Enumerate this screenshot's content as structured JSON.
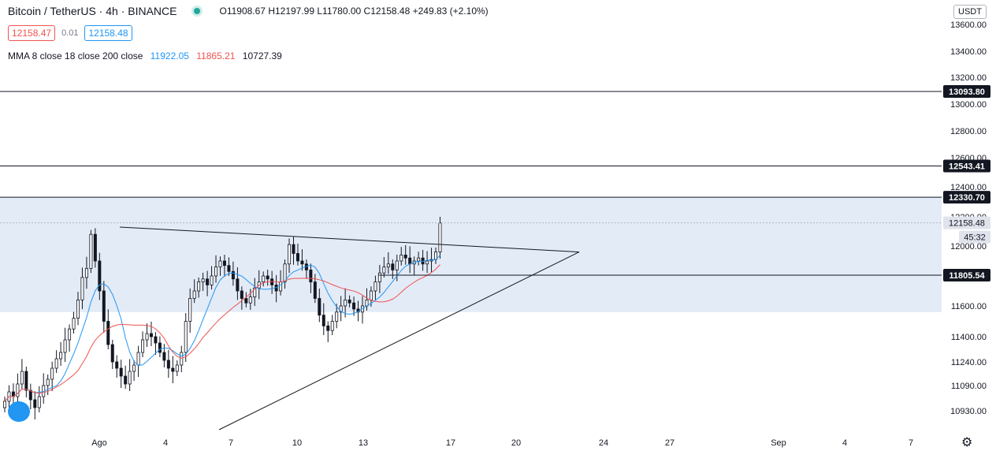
{
  "header": {
    "title": "Bitcoin / TetherUS · 4h · BINANCE",
    "ohlc": "O11908.67 H12197.99 L11780.00 C12158.48 +249.83 (+2.10%)"
  },
  "quote": {
    "sell": "12158.47",
    "spread": "0.01",
    "buy": "12158.48"
  },
  "indicator": {
    "label": "MMA 8 close 18 close 200 close",
    "v1": "11922.05",
    "v2": "11865.21",
    "v3": "10727.39"
  },
  "currency": "USDT",
  "colors": {
    "up": "#131722",
    "ma_fast": "#2196f3",
    "ma_slow": "#ef5350",
    "zone": "#e3ebf7",
    "label_bg": "#131722"
  },
  "icons": [
    "settings-gear-icon",
    "tradingview-logo-icon"
  ],
  "chart_data": {
    "type": "candlestick",
    "yticks": [
      13600,
      13400,
      13200,
      13000,
      12800,
      12600,
      12400,
      12200,
      12000,
      11800,
      11600,
      11400,
      11240,
      11090,
      10930
    ],
    "ytick_labels": [
      "13600.00",
      "13400.00",
      "13200.00",
      "13000.00",
      "12800.00",
      "12600.00",
      "12400.00",
      "12200.00",
      "12000.00",
      "",
      "11600.00",
      "11400.00",
      "11240.00",
      "11090.00",
      "10930.00"
    ],
    "xticks": [
      "Ago",
      "4",
      "7",
      "10",
      "13",
      "17",
      "20",
      "24",
      "27",
      "Sep",
      "4",
      "7"
    ],
    "horizontal_levels": [
      "13093.80",
      "12543.41",
      "12330.70",
      "11805.54"
    ],
    "last_price": "12158.48",
    "countdown": "45:32",
    "zone": {
      "top": 12330.7,
      "bottom": 11560
    },
    "trendlines": [
      {
        "from": [
          "Ago 2",
          12130
        ],
        "to": [
          "Ago 22",
          11960
        ]
      },
      {
        "from": [
          "Ago 6",
          10840
        ],
        "to": [
          "Ago 22",
          11960
        ]
      }
    ],
    "series": [
      {
        "name": "MMA 8",
        "values": []
      },
      {
        "name": "MMA 18",
        "values": []
      }
    ],
    "candles_close": [
      10990,
      11050,
      11020,
      11100,
      11180,
      11060,
      11000,
      10950,
      11020,
      11090,
      11130,
      11200,
      11260,
      11300,
      11380,
      11450,
      11520,
      11640,
      11790,
      11850,
      12080,
      11900,
      11700,
      11500,
      11350,
      11240,
      11200,
      11150,
      11100,
      11180,
      11220,
      11300,
      11380,
      11420,
      11400,
      11360,
      11300,
      11250,
      11200,
      11180,
      11220,
      11300,
      11500,
      11650,
      11700,
      11760,
      11780,
      11740,
      11800,
      11860,
      11900,
      11870,
      11830,
      11780,
      11700,
      11650,
      11620,
      11660,
      11720,
      11760,
      11800,
      11780,
      11740,
      11700,
      11760,
      11880,
      12010,
      11950,
      11900,
      11880,
      11840,
      11760,
      11650,
      11540,
      11470,
      11440,
      11500,
      11560,
      11600,
      11640,
      11620,
      11580,
      11560,
      11600,
      11640,
      11700,
      11760,
      11820,
      11860,
      11880,
      11840,
      11900,
      11940,
      11920,
      11880,
      11900,
      11920,
      11880,
      11900,
      11910,
      11960,
      12158
    ]
  }
}
